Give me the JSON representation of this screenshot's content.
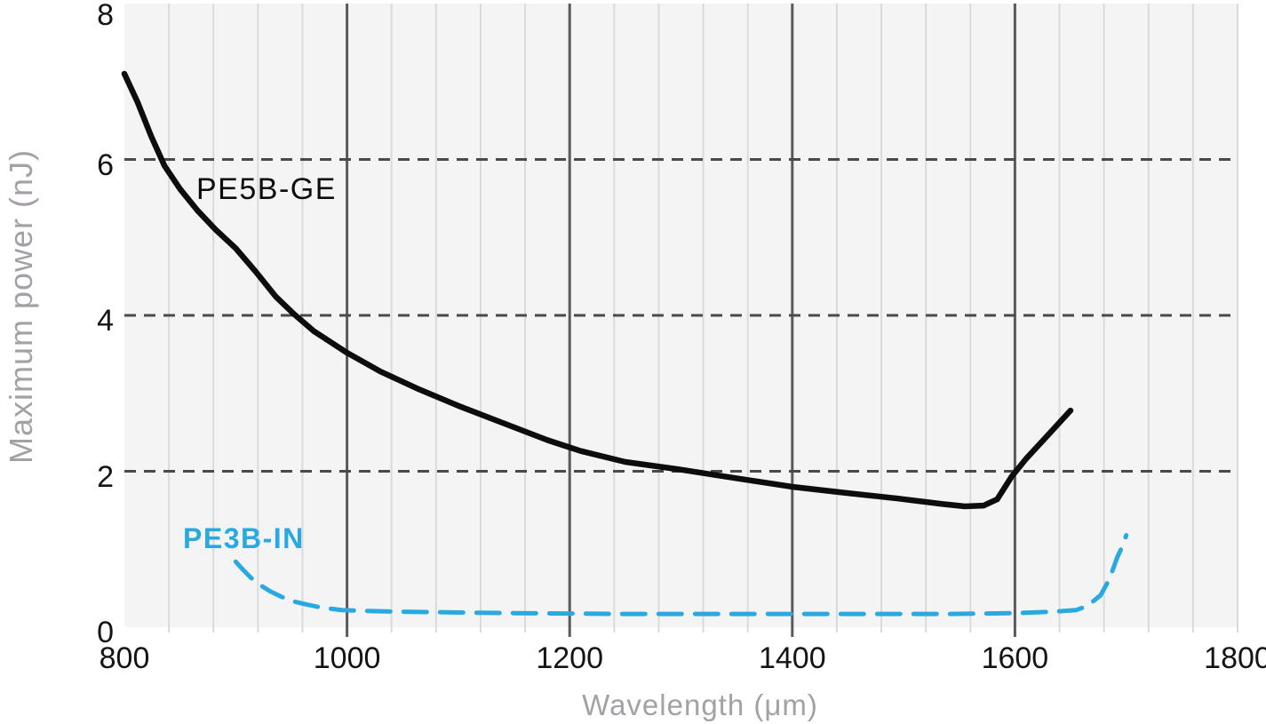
{
  "chart_data": {
    "type": "line",
    "title": "",
    "xlabel": "Wavelength (μm)",
    "ylabel": "Maximum power (nJ)",
    "xlim": [
      800,
      1800
    ],
    "ylim": [
      0,
      8
    ],
    "x_major_ticks": [
      800,
      1000,
      1200,
      1400,
      1600,
      1800
    ],
    "y_major_ticks": [
      8,
      6,
      4,
      2,
      0
    ],
    "x_minor_step": 40,
    "grid": {
      "vertical_minor": true,
      "vertical_major": true,
      "horizontal_dashed_at": [
        2,
        4,
        6
      ]
    },
    "legend_position": "inline-labels",
    "colors": {
      "plot_bg": "#f5f4f5",
      "minor_grid": "#dbdadb",
      "major_grid": "#5b595d",
      "dashed_grid": "#4a4a4a",
      "tick_text": "#141414",
      "axis_title_text": "#a5a0a5"
    },
    "series": [
      {
        "name": "PE5B-GE",
        "style": "solid",
        "color": "#0d0d0d",
        "points": [
          [
            800,
            7.1
          ],
          [
            812,
            6.73
          ],
          [
            824,
            6.3
          ],
          [
            836,
            5.92
          ],
          [
            850,
            5.62
          ],
          [
            866,
            5.34
          ],
          [
            882,
            5.1
          ],
          [
            900,
            4.86
          ],
          [
            918,
            4.56
          ],
          [
            936,
            4.24
          ],
          [
            952,
            4.02
          ],
          [
            970,
            3.8
          ],
          [
            1000,
            3.52
          ],
          [
            1030,
            3.28
          ],
          [
            1065,
            3.05
          ],
          [
            1100,
            2.84
          ],
          [
            1140,
            2.62
          ],
          [
            1180,
            2.4
          ],
          [
            1210,
            2.26
          ],
          [
            1250,
            2.12
          ],
          [
            1300,
            2.02
          ],
          [
            1350,
            1.91
          ],
          [
            1400,
            1.8
          ],
          [
            1450,
            1.72
          ],
          [
            1495,
            1.65
          ],
          [
            1535,
            1.58
          ],
          [
            1555,
            1.55
          ],
          [
            1572,
            1.56
          ],
          [
            1584,
            1.64
          ],
          [
            1597,
            1.93
          ],
          [
            1610,
            2.16
          ],
          [
            1630,
            2.47
          ],
          [
            1650,
            2.78
          ]
        ]
      },
      {
        "name": "PE3B-IN",
        "style": "dashed",
        "color": "#29a9e0",
        "points": [
          [
            900,
            0.84
          ],
          [
            907,
            0.73
          ],
          [
            914,
            0.63
          ],
          [
            922,
            0.54
          ],
          [
            931,
            0.46
          ],
          [
            941,
            0.39
          ],
          [
            952,
            0.33
          ],
          [
            964,
            0.29
          ],
          [
            978,
            0.25
          ],
          [
            995,
            0.22
          ],
          [
            1015,
            0.21
          ],
          [
            1045,
            0.2
          ],
          [
            1090,
            0.19
          ],
          [
            1150,
            0.18
          ],
          [
            1250,
            0.17
          ],
          [
            1350,
            0.17
          ],
          [
            1450,
            0.17
          ],
          [
            1540,
            0.17
          ],
          [
            1600,
            0.18
          ],
          [
            1635,
            0.2
          ],
          [
            1655,
            0.22
          ],
          [
            1665,
            0.27
          ],
          [
            1677,
            0.41
          ],
          [
            1685,
            0.62
          ],
          [
            1692,
            0.9
          ],
          [
            1697,
            1.05
          ],
          [
            1700,
            1.18
          ]
        ]
      }
    ]
  }
}
